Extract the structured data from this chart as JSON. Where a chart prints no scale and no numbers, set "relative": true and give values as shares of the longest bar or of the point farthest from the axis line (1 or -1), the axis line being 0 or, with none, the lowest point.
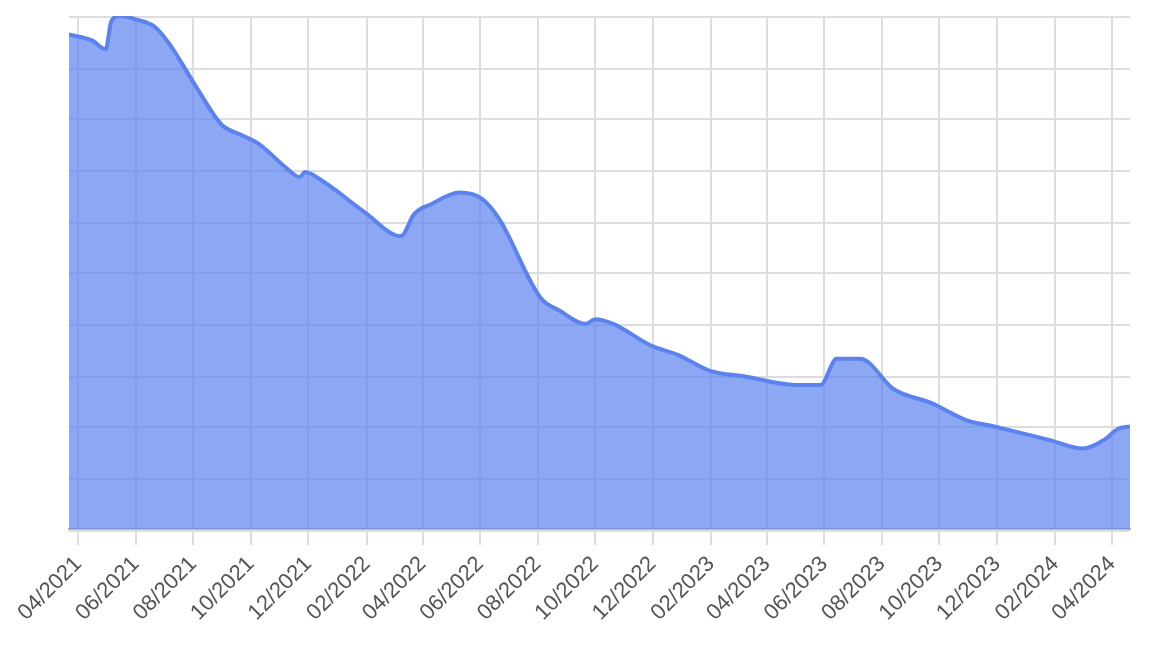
{
  "chart_data": {
    "type": "area",
    "relative": true,
    "grid": true,
    "x": [
      "2021-03-22",
      "2021-04-16",
      "2021-04-30",
      "2021-05-06",
      "2021-05-15",
      "2021-06-02",
      "2021-06-21",
      "2021-07-06",
      "2021-08-04",
      "2021-08-31",
      "2021-09-21",
      "2021-10-10",
      "2021-11-08",
      "2021-11-22",
      "2021-11-27",
      "2021-12-17",
      "2022-01-30",
      "2022-03-09",
      "2022-03-23",
      "2022-04-11",
      "2022-05-10",
      "2022-06-02",
      "2022-06-21",
      "2022-08-04",
      "2022-08-24",
      "2022-09-21",
      "2022-10-01",
      "2022-10-20",
      "2022-11-30",
      "2022-12-27",
      "2023-01-30",
      "2023-03-10",
      "2023-05-01",
      "2023-05-28",
      "2023-06-14",
      "2023-07-09",
      "2023-08-14",
      "2023-09-22",
      "2023-10-30",
      "2023-11-28",
      "2024-01-25",
      "2024-03-01",
      "2024-03-23",
      "2024-04-07",
      "2024-04-20"
    ],
    "series": [
      {
        "color": "#5b82ee",
        "values": [
          0.964,
          0.952,
          0.935,
          0.99,
          1,
          0.993,
          0.979,
          0.947,
          0.862,
          0.788,
          0.768,
          0.75,
          0.703,
          0.686,
          0.696,
          0.677,
          0.617,
          0.571,
          0.614,
          0.634,
          0.656,
          0.645,
          0.605,
          0.451,
          0.426,
          0.4,
          0.409,
          0.4,
          0.357,
          0.34,
          0.309,
          0.297,
          0.281,
          0.281,
          0.332,
          0.332,
          0.272,
          0.246,
          0.212,
          0.2,
          0.174,
          0.157,
          0.173,
          0.195,
          0.2
        ]
      }
    ],
    "xlim": [
      "2021-03-22",
      "2024-04-20"
    ],
    "xticks": [
      {
        "value": "2021-04-01",
        "label": "04/2021"
      },
      {
        "value": "2021-06-01",
        "label": "06/2021"
      },
      {
        "value": "2021-08-01",
        "label": "08/2021"
      },
      {
        "value": "2021-10-01",
        "label": "10/2021"
      },
      {
        "value": "2021-12-01",
        "label": "12/2021"
      },
      {
        "value": "2022-02-01",
        "label": "02/2022"
      },
      {
        "value": "2022-04-01",
        "label": "04/2022"
      },
      {
        "value": "2022-06-01",
        "label": "06/2022"
      },
      {
        "value": "2022-08-01",
        "label": "08/2022"
      },
      {
        "value": "2022-10-01",
        "label": "10/2022"
      },
      {
        "value": "2022-12-01",
        "label": "12/2022"
      },
      {
        "value": "2023-02-01",
        "label": "02/2023"
      },
      {
        "value": "2023-04-01",
        "label": "04/2023"
      },
      {
        "value": "2023-06-01",
        "label": "06/2023"
      },
      {
        "value": "2023-08-01",
        "label": "08/2023"
      },
      {
        "value": "2023-10-01",
        "label": "10/2023"
      },
      {
        "value": "2023-12-01",
        "label": "12/2023"
      },
      {
        "value": "2024-02-01",
        "label": "02/2024"
      },
      {
        "value": "2024-04-01",
        "label": "04/2024"
      }
    ]
  }
}
